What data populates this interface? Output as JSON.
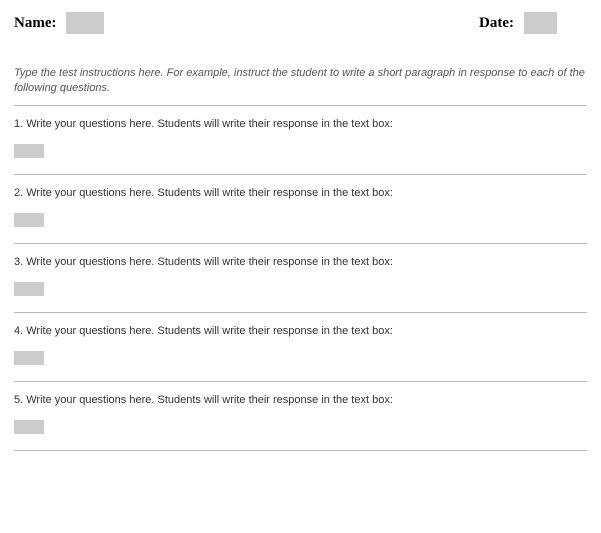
{
  "header": {
    "name_label": "Name:",
    "date_label": "Date:"
  },
  "instructions": "Type the test instructions here.  For example, instruct the student to write a short paragraph in response to each of the following questions.",
  "questions": [
    {
      "num": "1.",
      "text": "Write your questions here.  Students will write their response in the text box:"
    },
    {
      "num": "2.",
      "text": " Write your questions here.  Students will write their response in the text box:"
    },
    {
      "num": "3.",
      "text": "Write your questions here.  Students will write their response in the text box:"
    },
    {
      "num": "4.",
      "text": "Write your questions here.  Students will write their response in the text box:"
    },
    {
      "num": "5.",
      "text": "Write your questions here.  Students will write their response in the text box:"
    }
  ],
  "colors": {
    "input_bg": "#cccccc",
    "divider": "#b8b8b8",
    "text": "#333333",
    "instructions_text": "#555555"
  }
}
